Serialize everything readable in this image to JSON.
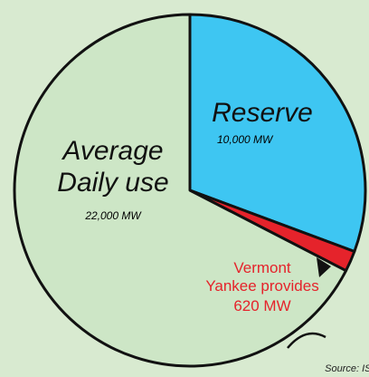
{
  "chart_data": {
    "type": "pie",
    "categories": [
      "Reserve",
      "Vermont\nYankee provides",
      "Average\nDaily use"
    ],
    "values": [
      10000,
      620,
      22000
    ],
    "value_labels": [
      "10,000 MW",
      "620 MW",
      "22,000 MW"
    ],
    "colors": [
      "#3ec6f2",
      "#e5232b",
      "#cde6c6"
    ],
    "source": "Source: ISO-NE"
  }
}
